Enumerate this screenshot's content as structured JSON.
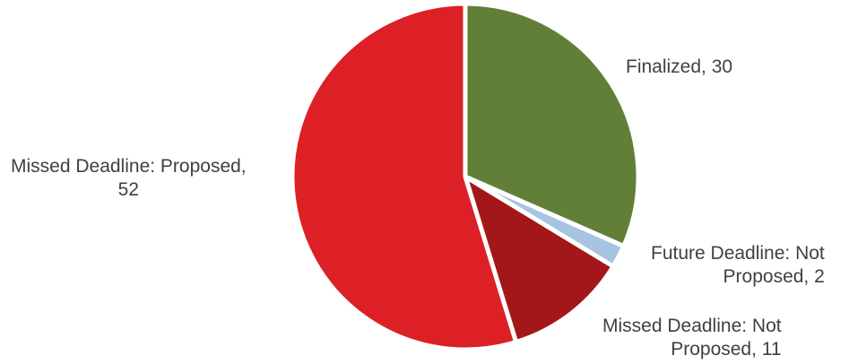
{
  "chart_data": {
    "type": "pie",
    "title": "",
    "slices": [
      {
        "category": "Finalized",
        "value": 30,
        "color": "#617f37",
        "label_lines": [
          "Finalized, 30"
        ]
      },
      {
        "category": "Future Deadline: Not Proposed",
        "value": 2,
        "color": "#a7c3e2",
        "label_lines": [
          "Future Deadline: Not",
          "Proposed, 2"
        ]
      },
      {
        "category": "Missed Deadline: Not Proposed",
        "value": 11,
        "color": "#a3161a",
        "label_lines": [
          "Missed Deadline: Not",
          "Proposed, 11"
        ]
      },
      {
        "category": "Missed Deadline: Proposed",
        "value": 52,
        "color": "#dc2026",
        "label_lines": [
          "Missed Deadline: Proposed,",
          "52"
        ]
      }
    ],
    "start_angle": "12 o'clock",
    "direction": "clockwise",
    "legend": "none",
    "data_labels": "outside"
  }
}
